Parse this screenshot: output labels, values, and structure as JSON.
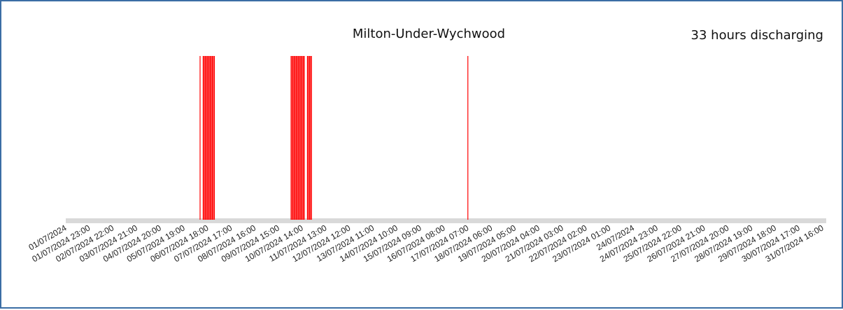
{
  "chart_data": {
    "type": "bar",
    "title": "Milton-Under-Wychwood",
    "annotation": "33 hours discharging",
    "xlabel": "",
    "ylabel": "",
    "grid": false,
    "legend": "none",
    "x_start": "01/07/2024 00:00",
    "x_end": "31/07/2024 23:00",
    "x_tick_labels": [
      "01/07/2024",
      "01/07/2024 23:00",
      "02/07/2024 22:00",
      "03/07/2024 21:00",
      "04/07/2024 20:00",
      "05/07/2024 19:00",
      "06/07/2024 18:00",
      "07/07/2024 17:00",
      "08/07/2024 16:00",
      "09/07/2024 15:00",
      "10/07/2024 14:00",
      "11/07/2024 13:00",
      "12/07/2024 12:00",
      "13/07/2024 11:00",
      "14/07/2024 10:00",
      "15/07/2024 09:00",
      "16/07/2024 08:00",
      "17/07/2024 07:00",
      "18/07/2024 06:00",
      "19/07/2024 05:00",
      "20/07/2024 04:00",
      "21/07/2024 03:00",
      "22/07/2024 02:00",
      "23/07/2024 01:00",
      "24/07/2024",
      "24/07/2024 23:00",
      "25/07/2024 22:00",
      "26/07/2024 21:00",
      "27/07/2024 20:00",
      "28/07/2024 19:00",
      "29/07/2024 18:00",
      "30/07/2024 17:00",
      "31/07/2024 16:00"
    ],
    "series": [
      {
        "color": "#ff0000",
        "discharging_hours": [
          "06/07/2024 11:00",
          "06/07/2024 14:00",
          "06/07/2024 15:00",
          "06/07/2024 16:00",
          "06/07/2024 17:00",
          "06/07/2024 18:00",
          "06/07/2024 19:00",
          "06/07/2024 20:00",
          "06/07/2024 21:00",
          "06/07/2024 22:00",
          "06/07/2024 23:00",
          "07/07/2024 00:00",
          "07/07/2024 01:00",
          "10/07/2024 04:00",
          "10/07/2024 05:00",
          "10/07/2024 06:00",
          "10/07/2024 07:00",
          "10/07/2024 08:00",
          "10/07/2024 09:00",
          "10/07/2024 10:00",
          "10/07/2024 11:00",
          "10/07/2024 12:00",
          "10/07/2024 13:00",
          "10/07/2024 14:00",
          "10/07/2024 15:00",
          "10/07/2024 16:00",
          "10/07/2024 17:00",
          "10/07/2024 20:00",
          "10/07/2024 21:00",
          "10/07/2024 22:00",
          "10/07/2024 23:00",
          "11/07/2024 00:00",
          "17/07/2024 09:00"
        ],
        "value": 1
      }
    ],
    "ylim": [
      0,
      1
    ],
    "colors": {
      "bar": "#ff0000",
      "baseline": "#d9d9d9",
      "frame": "#3b6ea5"
    }
  }
}
